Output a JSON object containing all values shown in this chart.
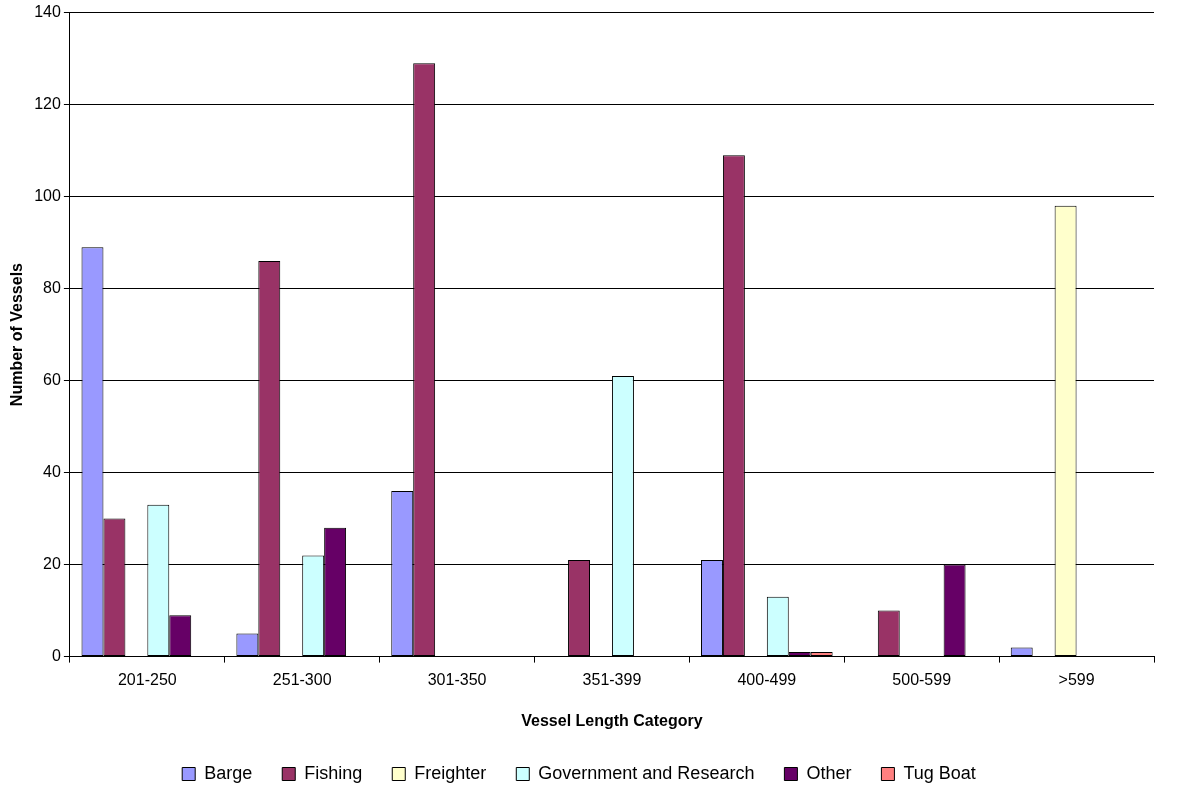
{
  "chart_data": {
    "type": "bar",
    "xlabel": "Vessel Length Category",
    "ylabel": "Number of Vessels",
    "categories": [
      "201-250",
      "251-300",
      "301-350",
      "351-399",
      "400-499",
      "500-599",
      ">599"
    ],
    "series": [
      {
        "name": "Barge",
        "color": "#9999ff",
        "values": [
          89,
          5,
          36,
          0,
          21,
          0,
          2
        ]
      },
      {
        "name": "Fishing",
        "color": "#993366",
        "values": [
          30,
          86,
          129,
          21,
          109,
          10,
          0
        ]
      },
      {
        "name": "Freighter",
        "color": "#ffffcc",
        "values": [
          0,
          0,
          0,
          0,
          0,
          0,
          98
        ]
      },
      {
        "name": "Government and Research",
        "color": "#ccffff",
        "values": [
          33,
          22,
          0,
          61,
          13,
          0,
          0
        ]
      },
      {
        "name": "Other",
        "color": "#660066",
        "values": [
          9,
          28,
          0,
          0,
          1,
          20,
          0
        ]
      },
      {
        "name": "Tug Boat",
        "color": "#ff8080",
        "values": [
          0,
          0,
          0,
          0,
          1,
          0,
          0
        ]
      }
    ],
    "ylim": [
      0,
      140
    ],
    "yticks": [
      0,
      20,
      40,
      60,
      80,
      100,
      120,
      140
    ],
    "grid": "y",
    "legend": "bottom"
  }
}
